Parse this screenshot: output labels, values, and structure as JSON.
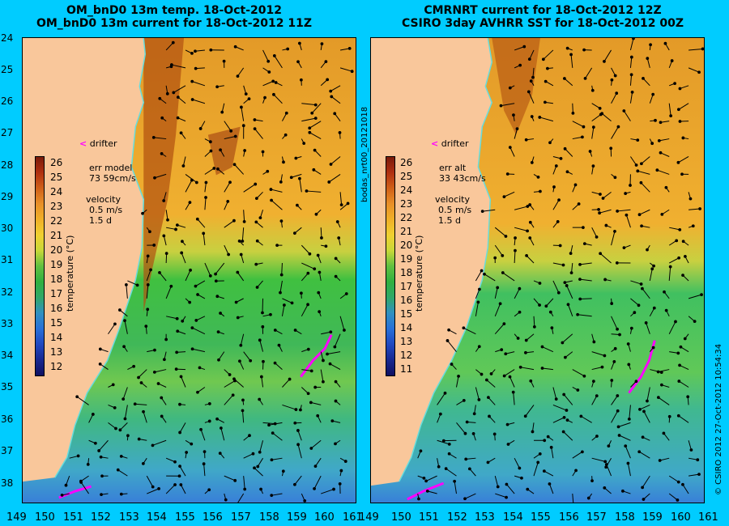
{
  "left_panel": {
    "title_line1": "OM_bnD0 13m temp. 18-Oct-2012",
    "title_line2": "OM_bnD0 13m current for 18-Oct-2012 11Z",
    "drifter_label": "drifter",
    "err_label": "err model",
    "err_value": "73 59cm/s",
    "velocity_label": "velocity",
    "velocity_scale": "0.5 m/s",
    "velocity_days": "1.5 d",
    "colorbar_title": "temperature (°C)",
    "colorbar_ticks": [
      "26",
      "25",
      "24",
      "23",
      "22",
      "21",
      "20",
      "19",
      "18",
      "17",
      "16",
      "15",
      "14",
      "13",
      "12"
    ]
  },
  "right_panel": {
    "title_line1": "CMRNRT current for 18-Oct-2012 12Z",
    "title_line2": "CSIRO 3day AVHRR SST for 18-Oct-2012 00Z",
    "drifter_label": "drifter",
    "err_label": "err alt",
    "err_value": "33 43cm/s",
    "velocity_label": "velocity",
    "velocity_scale": "0.5 m/s",
    "velocity_days": "1.5 d",
    "colorbar_title": "temperature (°C)",
    "colorbar_ticks": [
      "26",
      "25",
      "24",
      "23",
      "22",
      "21",
      "20",
      "19",
      "18",
      "17",
      "16",
      "15",
      "14",
      "13",
      "12",
      "11"
    ]
  },
  "latitude_ticks": [
    "24",
    "25",
    "26",
    "27",
    "28",
    "29",
    "30",
    "31",
    "32",
    "33",
    "34",
    "35",
    "36",
    "37",
    "38"
  ],
  "longitude_ticks": [
    "149",
    "150",
    "151",
    "152",
    "153",
    "154",
    "155",
    "156",
    "157",
    "158",
    "159",
    "160",
    "161"
  ],
  "side_label_mid": "bodas_nrt00_20121018",
  "side_label_right": "© CSIRO 2012   27-Oct-2012 10:54:34",
  "colors": {
    "background": "#00ccff",
    "land": "#f9c79b",
    "drifter": "#ff00ff",
    "coast_line": "#66dddd"
  }
}
